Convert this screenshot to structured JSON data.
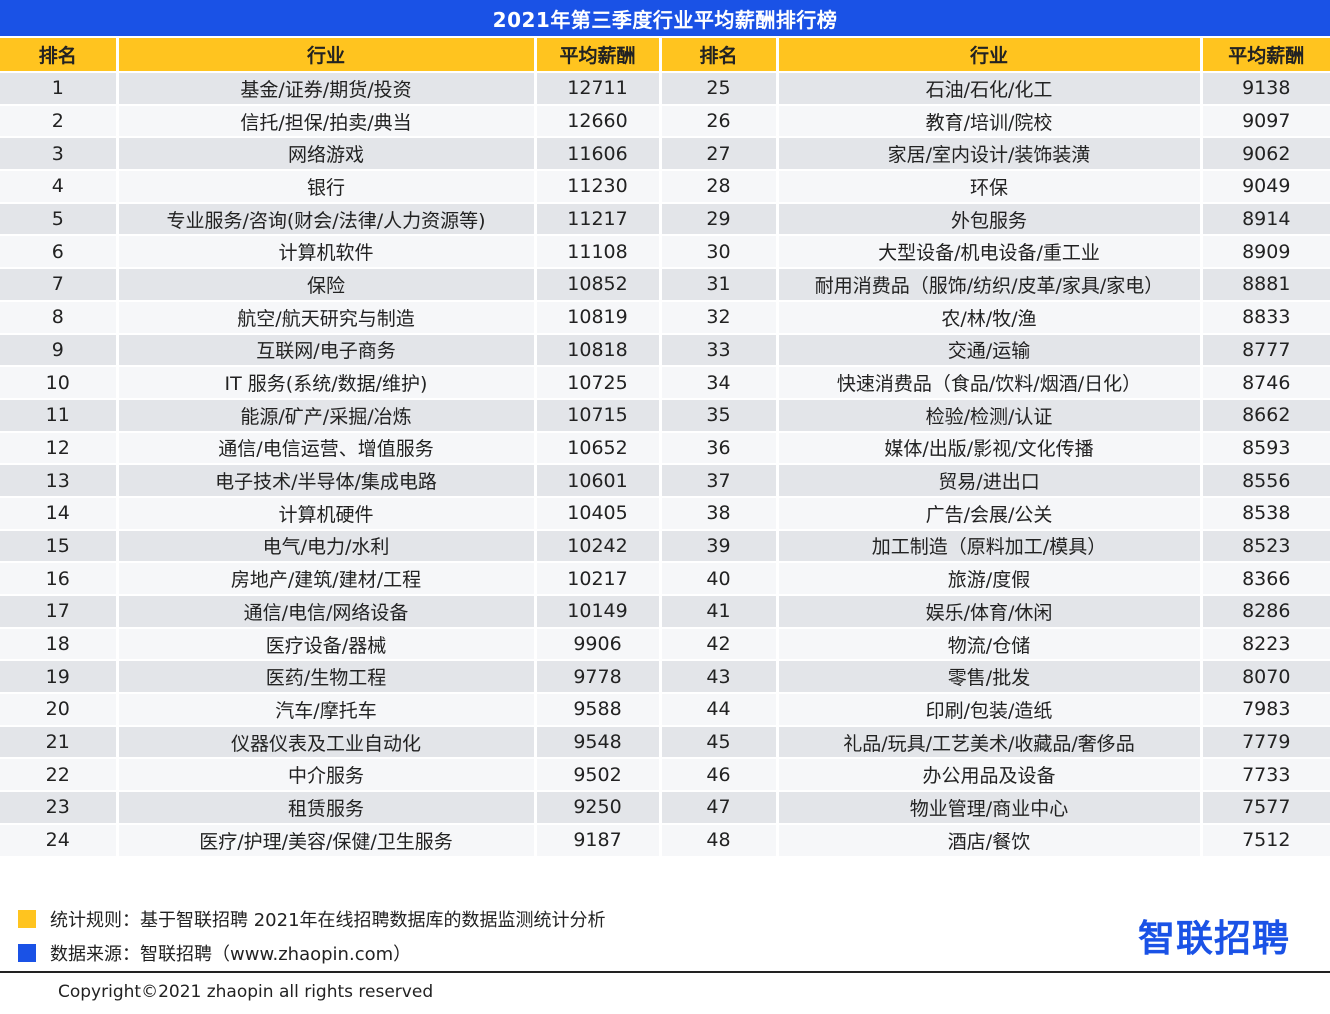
{
  "chart_data": {
    "type": "table",
    "title": "2021年第三季度行业平均薪酬排行榜",
    "columns": [
      "排名",
      "行业",
      "平均薪酬",
      "排名",
      "行业",
      "平均薪酬"
    ],
    "rows": [
      [
        1,
        "基金/证券/期货/投资",
        12711,
        25,
        "石油/石化/化工",
        9138
      ],
      [
        2,
        "信托/担保/拍卖/典当",
        12660,
        26,
        "教育/培训/院校",
        9097
      ],
      [
        3,
        "网络游戏",
        11606,
        27,
        "家居/室内设计/装饰装潢",
        9062
      ],
      [
        4,
        "银行",
        11230,
        28,
        "环保",
        9049
      ],
      [
        5,
        "专业服务/咨询(财会/法律/人力资源等)",
        11217,
        29,
        "外包服务",
        8914
      ],
      [
        6,
        "计算机软件",
        11108,
        30,
        "大型设备/机电设备/重工业",
        8909
      ],
      [
        7,
        "保险",
        10852,
        31,
        "耐用消费品（服饰/纺织/皮革/家具/家电）",
        8881
      ],
      [
        8,
        "航空/航天研究与制造",
        10819,
        32,
        "农/林/牧/渔",
        8833
      ],
      [
        9,
        "互联网/电子商务",
        10818,
        33,
        "交通/运输",
        8777
      ],
      [
        10,
        "IT 服务(系统/数据/维护)",
        10725,
        34,
        "快速消费品（食品/饮料/烟酒/日化）",
        8746
      ],
      [
        11,
        "能源/矿产/采掘/冶炼",
        10715,
        35,
        "检验/检测/认证",
        8662
      ],
      [
        12,
        "通信/电信运营、增值服务",
        10652,
        36,
        "媒体/出版/影视/文化传播",
        8593
      ],
      [
        13,
        "电子技术/半导体/集成电路",
        10601,
        37,
        "贸易/进出口",
        8556
      ],
      [
        14,
        "计算机硬件",
        10405,
        38,
        "广告/会展/公关",
        8538
      ],
      [
        15,
        "电气/电力/水利",
        10242,
        39,
        "加工制造（原料加工/模具）",
        8523
      ],
      [
        16,
        "房地产/建筑/建材/工程",
        10217,
        40,
        "旅游/度假",
        8366
      ],
      [
        17,
        "通信/电信/网络设备",
        10149,
        41,
        "娱乐/体育/休闲",
        8286
      ],
      [
        18,
        "医疗设备/器械",
        9906,
        42,
        "物流/仓储",
        8223
      ],
      [
        19,
        "医药/生物工程",
        9778,
        43,
        "零售/批发",
        8070
      ],
      [
        20,
        "汽车/摩托车",
        9588,
        44,
        "印刷/包装/造纸",
        7983
      ],
      [
        21,
        "仪器仪表及工业自动化",
        9548,
        45,
        "礼品/玩具/工艺美术/收藏品/奢侈品",
        7779
      ],
      [
        22,
        "中介服务",
        9502,
        46,
        "办公用品及设备",
        7733
      ],
      [
        23,
        "租赁服务",
        9250,
        47,
        "物业管理/商业中心",
        7577
      ],
      [
        24,
        "医疗/护理/美容/保健/卫生服务",
        9187,
        48,
        "酒店/餐饮",
        7512
      ]
    ]
  },
  "legend": {
    "rule": "统计规则：基于智联招聘 2021年在线招聘数据库的数据监测统计分析",
    "source": "数据来源：智联招聘（www.zhaopin.com）",
    "rule_color": "#ffc41f",
    "source_color": "#1a52e6"
  },
  "logo": "智联招聘",
  "copyright": "Copyright©2021 zhaopin all rights reserved",
  "colors": {
    "title_bg": "#1a52e6",
    "header_bg": "#ffc41f",
    "row_odd": "#e3e5e9",
    "row_even": "#f6f7f9"
  }
}
